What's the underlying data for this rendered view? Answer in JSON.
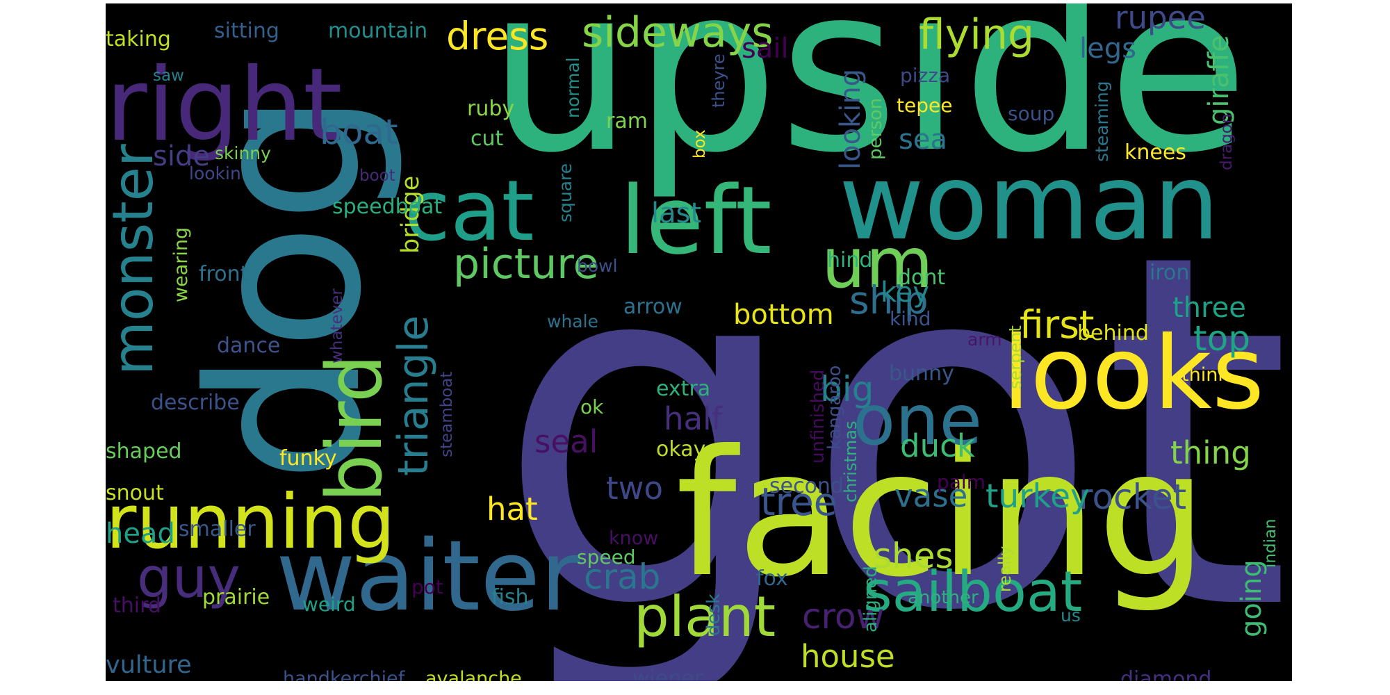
{
  "word_cloud": {
    "background": "#000000",
    "words": [
      {
        "text": "got",
        "color": "#433e85"
      },
      {
        "text": "upside",
        "color": "#2db27d"
      },
      {
        "text": "dog",
        "color": "#2a788e"
      },
      {
        "text": "facing",
        "color": "#bddf26"
      },
      {
        "text": "woman",
        "color": "#21918c"
      },
      {
        "text": "right",
        "color": "#482878"
      },
      {
        "text": "looks",
        "color": "#fde725"
      },
      {
        "text": "waiter",
        "color": "#31688e"
      },
      {
        "text": "left",
        "color": "#35b779"
      },
      {
        "text": "cat",
        "color": "#1f9e89"
      },
      {
        "text": "bird",
        "color": "#7ad151"
      },
      {
        "text": "monster",
        "color": "#26828e"
      },
      {
        "text": "running",
        "color": "#d2e21b"
      },
      {
        "text": "um",
        "color": "#6ece58"
      },
      {
        "text": "one",
        "color": "#2c728e"
      },
      {
        "text": "sailboat",
        "color": "#25ab82"
      },
      {
        "text": "plant",
        "color": "#a0da39"
      },
      {
        "text": "guy",
        "color": "#472d7b"
      },
      {
        "text": "triangle",
        "color": "#287d8e"
      },
      {
        "text": "picture",
        "color": "#5ec962"
      },
      {
        "text": "sideways",
        "color": "#86d549"
      },
      {
        "text": "flying",
        "color": "#addc30"
      },
      {
        "text": "dress",
        "color": "#fde725"
      },
      {
        "text": "rupee",
        "color": "#3e4a89"
      },
      {
        "text": "boat",
        "color": "#30698e"
      },
      {
        "text": "ship",
        "color": "#2e6f8e"
      },
      {
        "text": "first",
        "color": "#e5e419"
      },
      {
        "text": "top",
        "color": "#20a486"
      },
      {
        "text": "big",
        "color": "#26818e"
      },
      {
        "text": "rocket",
        "color": "#3b528b"
      },
      {
        "text": "tree",
        "color": "#39558c"
      },
      {
        "text": "turkey",
        "color": "#1fa088"
      },
      {
        "text": "crab",
        "color": "#2a768e"
      },
      {
        "text": "shes",
        "color": "#addc30"
      },
      {
        "text": "crow",
        "color": "#482173"
      },
      {
        "text": "house",
        "color": "#bddf26"
      },
      {
        "text": "hat",
        "color": "#fde725"
      },
      {
        "text": "two",
        "color": "#3e4989"
      },
      {
        "text": "half",
        "color": "#46307e"
      },
      {
        "text": "seal",
        "color": "#471063"
      },
      {
        "text": "duck",
        "color": "#3dbc74"
      },
      {
        "text": "thing",
        "color": "#84d44b"
      },
      {
        "text": "vase",
        "color": "#2d708e"
      },
      {
        "text": "looking",
        "color": "#38588c"
      },
      {
        "text": "bottom",
        "color": "#e7e419"
      },
      {
        "text": "giraffe",
        "color": "#4ac16d"
      },
      {
        "text": "key",
        "color": "#23888e"
      },
      {
        "text": "three",
        "color": "#1fa187"
      },
      {
        "text": "sea",
        "color": "#2c738e"
      },
      {
        "text": "last",
        "color": "#238a8d"
      },
      {
        "text": "side",
        "color": "#433d84"
      },
      {
        "text": "head",
        "color": "#1fa088"
      },
      {
        "text": "vulture",
        "color": "#31678e"
      },
      {
        "text": "going",
        "color": "#3dbc74"
      },
      {
        "text": "legs",
        "color": "#31668e"
      },
      {
        "text": "sail",
        "color": "#440154"
      },
      {
        "text": "bridge",
        "color": "#b5de2b"
      },
      {
        "text": "wearing",
        "color": "#8bd646"
      },
      {
        "text": "front",
        "color": "#2d718e"
      },
      {
        "text": "describe",
        "color": "#3b528b"
      },
      {
        "text": "shaped",
        "color": "#67cc5c"
      },
      {
        "text": "snout",
        "color": "#c8e020"
      },
      {
        "text": "smaller",
        "color": "#38598c"
      },
      {
        "text": "funky",
        "color": "#fde725"
      },
      {
        "text": "speedboat",
        "color": "#29af7f"
      },
      {
        "text": "skinny",
        "color": "#7ad151"
      },
      {
        "text": "lookin",
        "color": "#3f4788"
      },
      {
        "text": "taking",
        "color": "#c2df23"
      },
      {
        "text": "sitting",
        "color": "#355f8d"
      },
      {
        "text": "mountain",
        "color": "#218f8d"
      },
      {
        "text": "saw",
        "color": "#25838e"
      },
      {
        "text": "ruby",
        "color": "#8bd646"
      },
      {
        "text": "cut",
        "color": "#5ec962"
      },
      {
        "text": "ram",
        "color": "#7fd34e"
      },
      {
        "text": "box",
        "color": "#fde725"
      },
      {
        "text": "theyre",
        "color": "#3b528b"
      },
      {
        "text": "normal",
        "color": "#21918c"
      },
      {
        "text": "square",
        "color": "#26828e"
      },
      {
        "text": "pizza",
        "color": "#3e4a89"
      },
      {
        "text": "tepee",
        "color": "#fde725"
      },
      {
        "text": "soup",
        "color": "#3b528b"
      },
      {
        "text": "person",
        "color": "#5ec962"
      },
      {
        "text": "steaming",
        "color": "#2a788e"
      },
      {
        "text": "knees",
        "color": "#fde725"
      },
      {
        "text": "dragon",
        "color": "#481b6d"
      },
      {
        "text": "boot",
        "color": "#472a7a"
      },
      {
        "text": "bowl",
        "color": "#3b518b"
      },
      {
        "text": "hind",
        "color": "#2db27d"
      },
      {
        "text": "dont",
        "color": "#4ac16d"
      },
      {
        "text": "iron",
        "color": "#2a768e"
      },
      {
        "text": "arrow",
        "color": "#2c728e"
      },
      {
        "text": "whale",
        "color": "#2c738e"
      },
      {
        "text": "kind",
        "color": "#3a548c"
      },
      {
        "text": "behind",
        "color": "#e2e418"
      },
      {
        "text": "arm",
        "color": "#481668"
      },
      {
        "text": "dance",
        "color": "#3b528b"
      },
      {
        "text": "whatever",
        "color": "#472f7d"
      },
      {
        "text": "extra",
        "color": "#2db27d"
      },
      {
        "text": "ok",
        "color": "#7ad151"
      },
      {
        "text": "bunny",
        "color": "#38588c"
      },
      {
        "text": "think",
        "color": "#fde725"
      },
      {
        "text": "okay",
        "color": "#bddf26"
      },
      {
        "text": "christmas",
        "color": "#2db27d"
      },
      {
        "text": "kangaroo",
        "color": "#3d4e8a"
      },
      {
        "text": "unfinished",
        "color": "#460b5e"
      },
      {
        "text": "serpent",
        "color": "#a8db34"
      },
      {
        "text": "steamboat",
        "color": "#414487"
      },
      {
        "text": "second",
        "color": "#3b528b"
      },
      {
        "text": "palm",
        "color": "#440154"
      },
      {
        "text": "know",
        "color": "#471063"
      },
      {
        "text": "speed",
        "color": "#5ec962"
      },
      {
        "text": "indian",
        "color": "#44bf70"
      },
      {
        "text": "fox",
        "color": "#31678e"
      },
      {
        "text": "really",
        "color": "#addc30"
      },
      {
        "text": "aligned",
        "color": "#29af7f"
      },
      {
        "text": "desk",
        "color": "#2a788e"
      },
      {
        "text": "another",
        "color": "#2db27d"
      },
      {
        "text": "us",
        "color": "#23898e"
      },
      {
        "text": "third",
        "color": "#471063"
      },
      {
        "text": "prairie",
        "color": "#a0da39"
      },
      {
        "text": "weird",
        "color": "#1fa088"
      },
      {
        "text": "pot",
        "color": "#440154"
      },
      {
        "text": "fish",
        "color": "#26828e"
      },
      {
        "text": "wiener",
        "color": "#3e4a89"
      },
      {
        "text": "handkerchief",
        "color": "#3b528b"
      },
      {
        "text": "avalanche",
        "color": "#c2df23"
      },
      {
        "text": "diamond",
        "color": "#46307e"
      }
    ]
  }
}
